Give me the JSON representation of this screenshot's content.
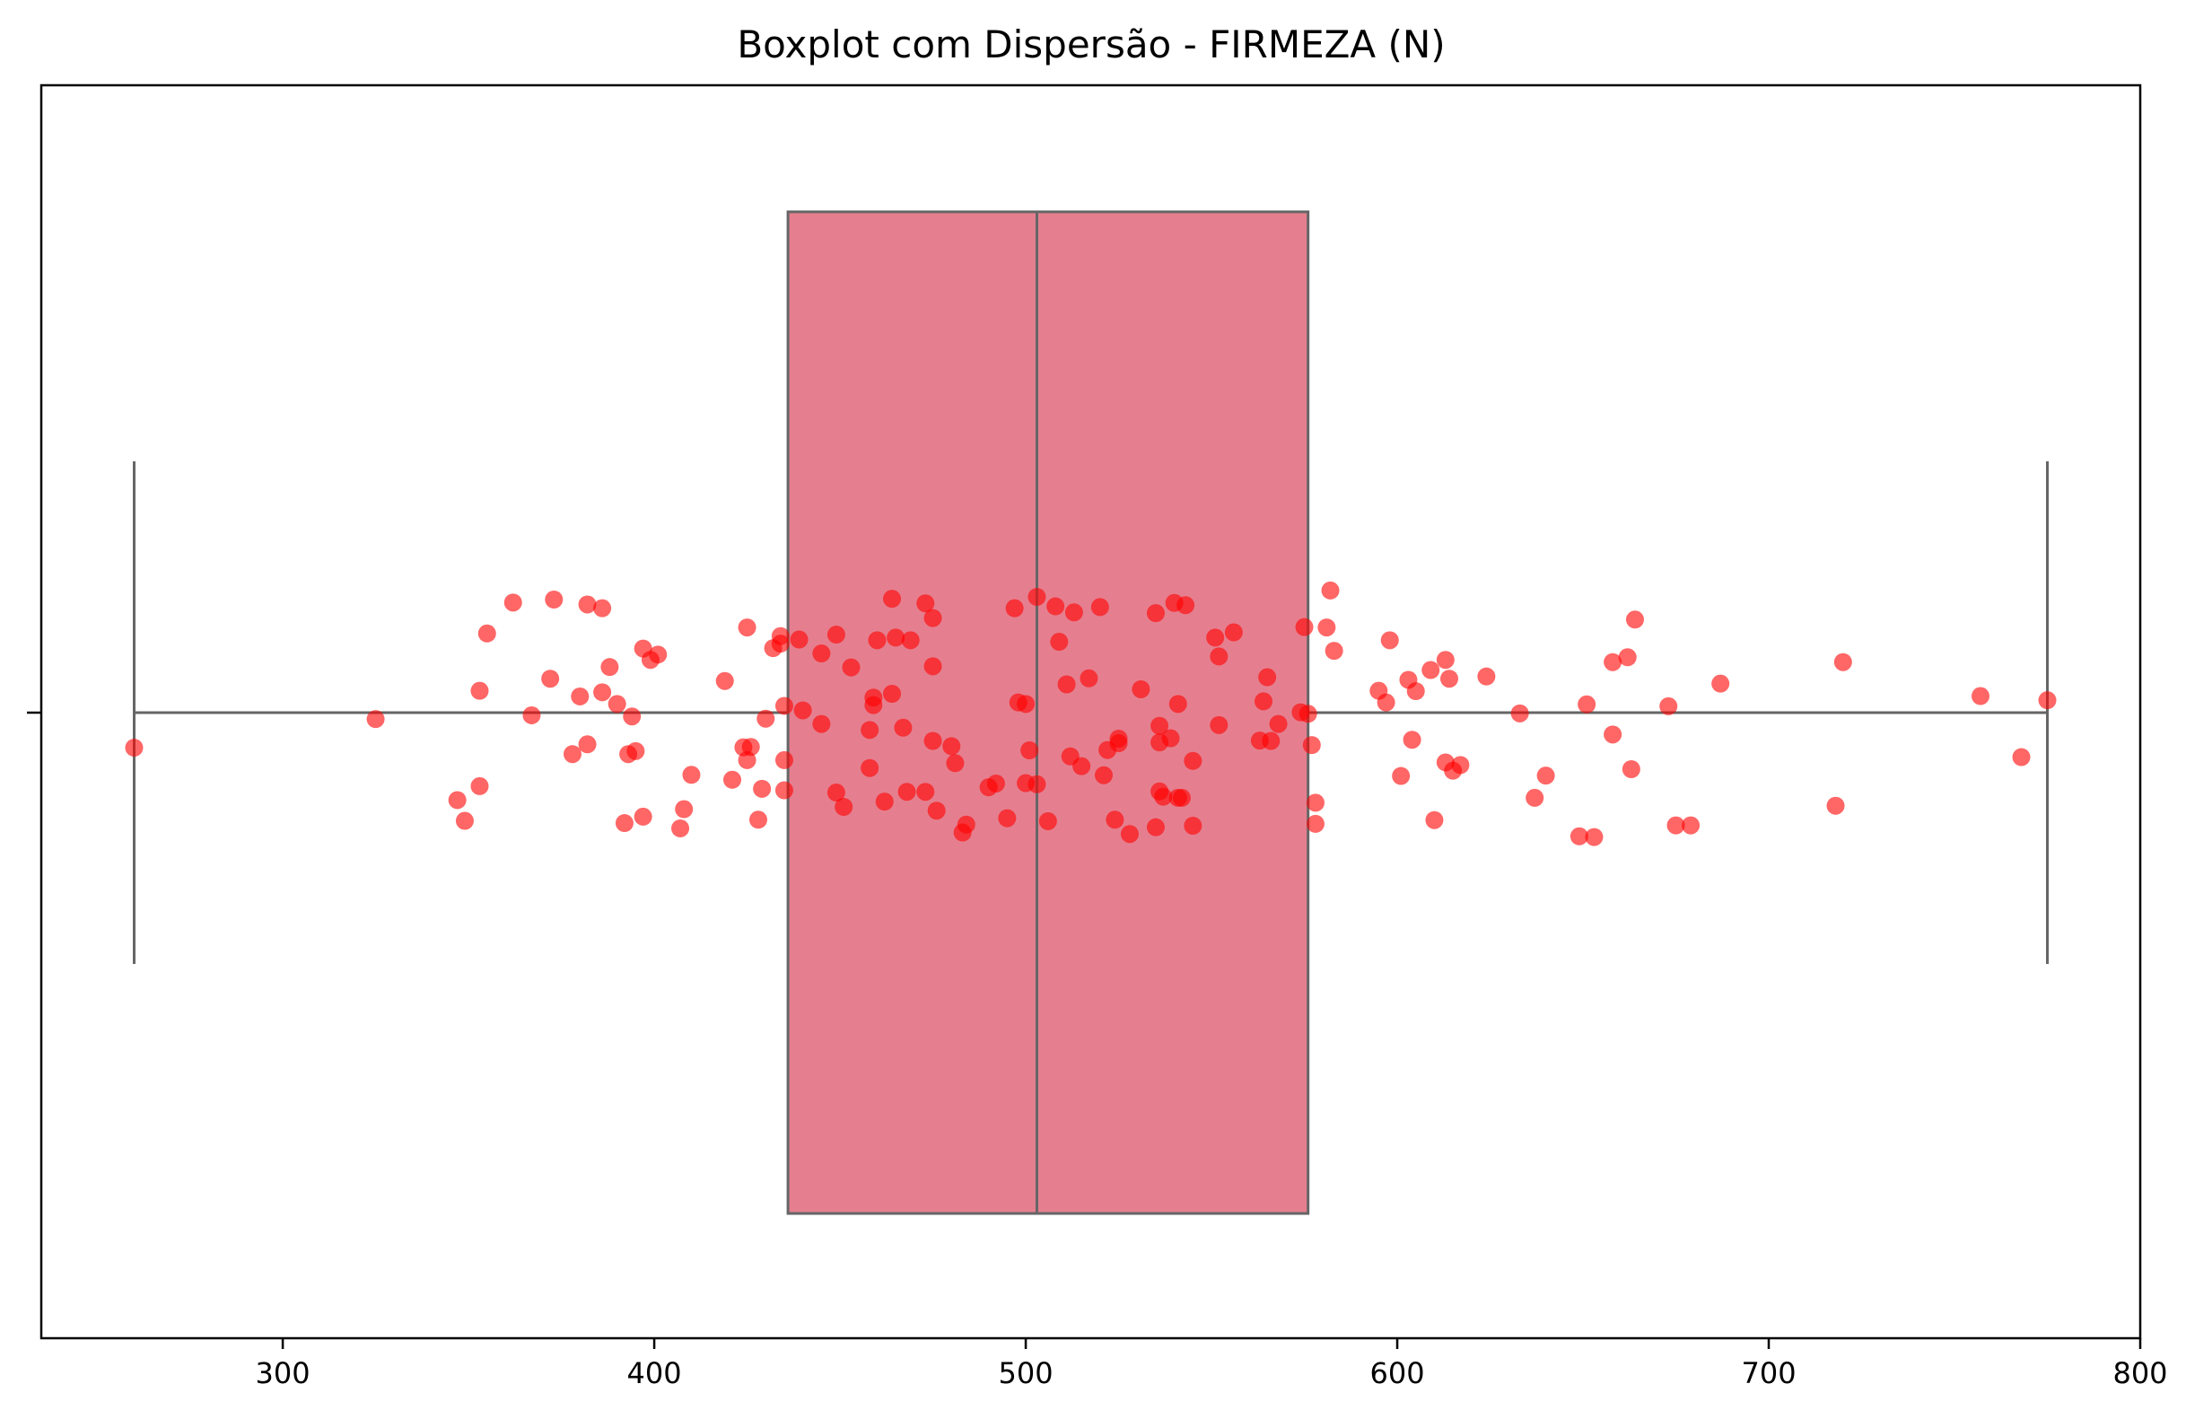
{
  "chart_data": {
    "type": "boxplot",
    "title": "Boxplot com Dispersão - FIRMEZA (N)",
    "xlabel": "",
    "ylabel": "",
    "xlim": [
      235,
      800
    ],
    "xticks": [
      300,
      400,
      500,
      600,
      700,
      800
    ],
    "box": {
      "whisker_low": 260,
      "q1": 436,
      "median": 503,
      "q3": 576,
      "whisker_high": 775
    },
    "box_color": "#e57f8f",
    "box_edge_color": "#666666",
    "point_color": "#ff0000",
    "grid": false,
    "points": [
      {
        "x": 260,
        "j": 0.093
      },
      {
        "x": 325,
        "j": 0.017
      },
      {
        "x": 347,
        "j": 0.232
      },
      {
        "x": 349,
        "j": 0.287
      },
      {
        "x": 353,
        "j": 0.195
      },
      {
        "x": 353,
        "j": -0.058
      },
      {
        "x": 355,
        "j": -0.21
      },
      {
        "x": 362,
        "j": -0.292
      },
      {
        "x": 367,
        "j": 0.007
      },
      {
        "x": 372,
        "j": -0.09
      },
      {
        "x": 373,
        "j": -0.3
      },
      {
        "x": 378,
        "j": 0.11
      },
      {
        "x": 380,
        "j": -0.043
      },
      {
        "x": 382,
        "j": 0.084
      },
      {
        "x": 382,
        "j": -0.287
      },
      {
        "x": 386,
        "j": -0.277
      },
      {
        "x": 386,
        "j": -0.054
      },
      {
        "x": 388,
        "j": -0.121
      },
      {
        "x": 390,
        "j": -0.023
      },
      {
        "x": 392,
        "j": 0.293
      },
      {
        "x": 393,
        "j": 0.11
      },
      {
        "x": 394,
        "j": 0.01
      },
      {
        "x": 395,
        "j": 0.102
      },
      {
        "x": 397,
        "j": -0.17
      },
      {
        "x": 397,
        "j": 0.276
      },
      {
        "x": 399,
        "j": -0.14
      },
      {
        "x": 401,
        "j": -0.154
      },
      {
        "x": 407,
        "j": 0.307
      },
      {
        "x": 408,
        "j": 0.256
      },
      {
        "x": 410,
        "j": 0.165
      },
      {
        "x": 419,
        "j": -0.084
      },
      {
        "x": 421,
        "j": 0.178
      },
      {
        "x": 424,
        "j": 0.092
      },
      {
        "x": 425,
        "j": -0.226
      },
      {
        "x": 425,
        "j": 0.126
      },
      {
        "x": 426,
        "j": 0.091
      },
      {
        "x": 428,
        "j": 0.284
      },
      {
        "x": 429,
        "j": 0.202
      },
      {
        "x": 430,
        "j": 0.016
      },
      {
        "x": 432,
        "j": -0.171
      },
      {
        "x": 434,
        "j": -0.183
      },
      {
        "x": 434,
        "j": -0.203
      },
      {
        "x": 435,
        "j": -0.018
      },
      {
        "x": 435,
        "j": 0.126
      },
      {
        "x": 435,
        "j": 0.206
      },
      {
        "x": 439,
        "j": -0.194
      },
      {
        "x": 440,
        "j": -0.006
      },
      {
        "x": 445,
        "j": -0.157
      },
      {
        "x": 445,
        "j": 0.03
      },
      {
        "x": 449,
        "j": -0.207
      },
      {
        "x": 449,
        "j": 0.212
      },
      {
        "x": 451,
        "j": 0.25
      },
      {
        "x": 453,
        "j": -0.12
      },
      {
        "x": 458,
        "j": 0.046
      },
      {
        "x": 458,
        "j": 0.147
      },
      {
        "x": 459,
        "j": -0.02
      },
      {
        "x": 459,
        "j": -0.04
      },
      {
        "x": 460,
        "j": -0.192
      },
      {
        "x": 462,
        "j": 0.236
      },
      {
        "x": 464,
        "j": -0.05
      },
      {
        "x": 464,
        "j": -0.302
      },
      {
        "x": 465,
        "j": -0.199
      },
      {
        "x": 467,
        "j": 0.04
      },
      {
        "x": 468,
        "j": 0.21
      },
      {
        "x": 469,
        "j": -0.192
      },
      {
        "x": 473,
        "j": 0.21
      },
      {
        "x": 473,
        "j": -0.29
      },
      {
        "x": 475,
        "j": 0.075
      },
      {
        "x": 475,
        "j": -0.123
      },
      {
        "x": 475,
        "j": -0.251
      },
      {
        "x": 476,
        "j": 0.26
      },
      {
        "x": 480,
        "j": 0.089
      },
      {
        "x": 481,
        "j": 0.134
      },
      {
        "x": 483,
        "j": 0.318
      },
      {
        "x": 484,
        "j": 0.297
      },
      {
        "x": 490,
        "j": 0.198
      },
      {
        "x": 492,
        "j": 0.188
      },
      {
        "x": 495,
        "j": 0.28
      },
      {
        "x": 497,
        "j": -0.277
      },
      {
        "x": 498,
        "j": -0.027
      },
      {
        "x": 500,
        "j": 0.187
      },
      {
        "x": 500,
        "j": -0.023
      },
      {
        "x": 501,
        "j": 0.1
      },
      {
        "x": 503,
        "j": 0.19
      },
      {
        "x": 503,
        "j": -0.307
      },
      {
        "x": 506,
        "j": 0.288
      },
      {
        "x": 508,
        "j": -0.282
      },
      {
        "x": 509,
        "j": -0.188
      },
      {
        "x": 511,
        "j": -0.075
      },
      {
        "x": 512,
        "j": 0.116
      },
      {
        "x": 513,
        "j": -0.266
      },
      {
        "x": 515,
        "j": 0.142
      },
      {
        "x": 517,
        "j": -0.091
      },
      {
        "x": 520,
        "j": -0.28
      },
      {
        "x": 521,
        "j": 0.166
      },
      {
        "x": 522,
        "j": 0.099
      },
      {
        "x": 524,
        "j": 0.284
      },
      {
        "x": 525,
        "j": 0.081
      },
      {
        "x": 525,
        "j": 0.069
      },
      {
        "x": 528,
        "j": 0.322
      },
      {
        "x": 531,
        "j": -0.062
      },
      {
        "x": 535,
        "j": -0.264
      },
      {
        "x": 535,
        "j": 0.304
      },
      {
        "x": 536,
        "j": 0.035
      },
      {
        "x": 536,
        "j": 0.209
      },
      {
        "x": 536,
        "j": 0.079
      },
      {
        "x": 537,
        "j": 0.223
      },
      {
        "x": 539,
        "j": 0.068
      },
      {
        "x": 540,
        "j": -0.291
      },
      {
        "x": 541,
        "j": -0.023
      },
      {
        "x": 541,
        "j": 0.226
      },
      {
        "x": 542,
        "j": 0.226
      },
      {
        "x": 543,
        "j": -0.285
      },
      {
        "x": 545,
        "j": 0.128
      },
      {
        "x": 545,
        "j": 0.3
      },
      {
        "x": 551,
        "j": -0.199
      },
      {
        "x": 552,
        "j": 0.033
      },
      {
        "x": 552,
        "j": -0.149
      },
      {
        "x": 556,
        "j": -0.213
      },
      {
        "x": 563,
        "j": 0.074
      },
      {
        "x": 564,
        "j": -0.03
      },
      {
        "x": 565,
        "j": -0.094
      },
      {
        "x": 566,
        "j": 0.075
      },
      {
        "x": 568,
        "j": 0.03
      },
      {
        "x": 574,
        "j": -0.001
      },
      {
        "x": 575,
        "j": -0.227
      },
      {
        "x": 576,
        "j": 0.003
      },
      {
        "x": 577,
        "j": 0.086
      },
      {
        "x": 578,
        "j": 0.239
      },
      {
        "x": 578,
        "j": 0.295
      },
      {
        "x": 581,
        "j": -0.226
      },
      {
        "x": 582,
        "j": -0.324
      },
      {
        "x": 583,
        "j": -0.164
      },
      {
        "x": 595,
        "j": -0.058
      },
      {
        "x": 597,
        "j": -0.027
      },
      {
        "x": 598,
        "j": -0.192
      },
      {
        "x": 601,
        "j": 0.168
      },
      {
        "x": 603,
        "j": -0.087
      },
      {
        "x": 604,
        "j": 0.072
      },
      {
        "x": 605,
        "j": -0.057
      },
      {
        "x": 609,
        "j": -0.113
      },
      {
        "x": 610,
        "j": 0.285
      },
      {
        "x": 613,
        "j": -0.14
      },
      {
        "x": 613,
        "j": 0.132
      },
      {
        "x": 614,
        "j": -0.09
      },
      {
        "x": 615,
        "j": 0.154
      },
      {
        "x": 617,
        "j": 0.139
      },
      {
        "x": 624,
        "j": -0.096
      },
      {
        "x": 633,
        "j": 0.002
      },
      {
        "x": 637,
        "j": 0.226
      },
      {
        "x": 640,
        "j": 0.167
      },
      {
        "x": 649,
        "j": 0.328
      },
      {
        "x": 651,
        "j": -0.022
      },
      {
        "x": 653,
        "j": 0.33
      },
      {
        "x": 658,
        "j": -0.134
      },
      {
        "x": 658,
        "j": 0.058
      },
      {
        "x": 662,
        "j": -0.147
      },
      {
        "x": 663,
        "j": 0.15
      },
      {
        "x": 664,
        "j": -0.247
      },
      {
        "x": 673,
        "j": -0.017
      },
      {
        "x": 675,
        "j": 0.299
      },
      {
        "x": 679,
        "j": 0.299
      },
      {
        "x": 687,
        "j": -0.077
      },
      {
        "x": 718,
        "j": 0.247
      },
      {
        "x": 720,
        "j": -0.134
      },
      {
        "x": 757,
        "j": -0.044
      },
      {
        "x": 768,
        "j": 0.118
      },
      {
        "x": 775,
        "j": -0.033
      }
    ]
  }
}
